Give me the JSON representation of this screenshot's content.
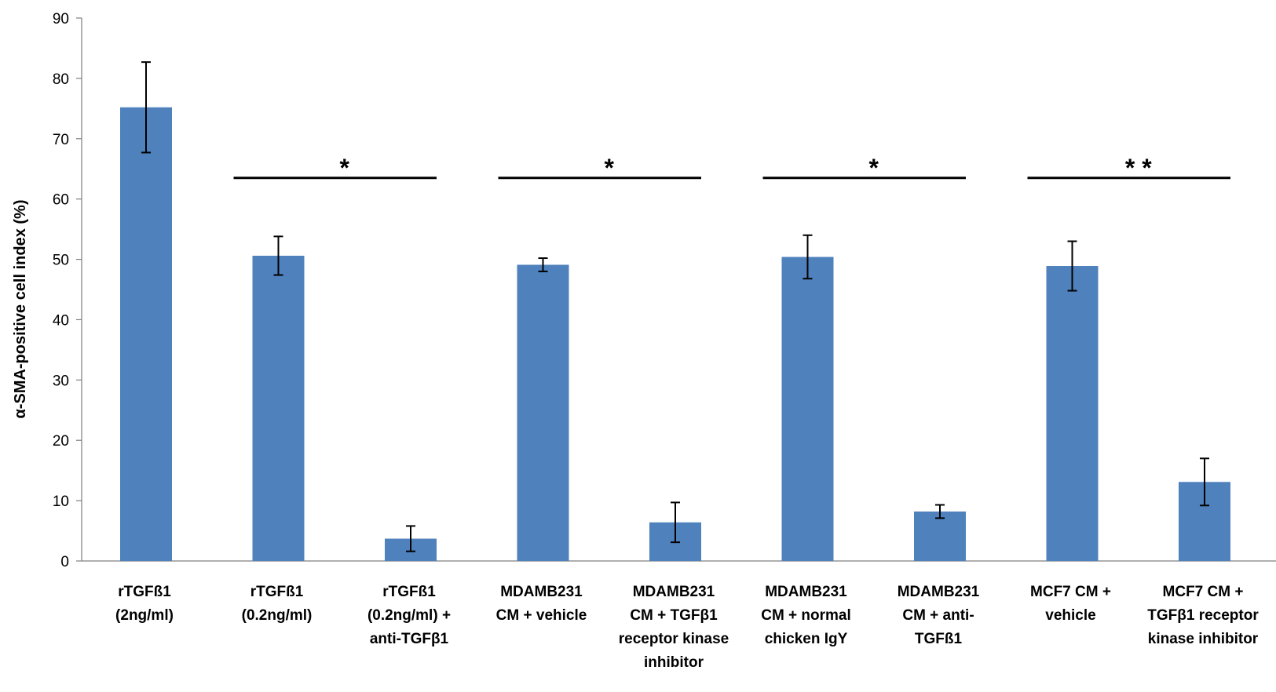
{
  "chart_data": {
    "type": "bar",
    "title": "",
    "xlabel": "",
    "ylabel": "α-SMA-positive cell index (%)",
    "ylim": [
      0,
      90
    ],
    "yticks": [
      0,
      10,
      20,
      30,
      40,
      50,
      60,
      70,
      80,
      90
    ],
    "grid": false,
    "legend": "none",
    "bar_color": "#4f81bd",
    "categories": [
      [
        "rTGFß1",
        "(2ng/ml)"
      ],
      [
        "rTGFß1",
        "(0.2ng/ml)"
      ],
      [
        "rTGFß1",
        "(0.2ng/ml) +",
        "anti-TGFβ1"
      ],
      [
        "MDAMB231",
        "CM + vehicle"
      ],
      [
        "MDAMB231",
        "CM + TGFβ1",
        "receptor kinase",
        "inhibitor"
      ],
      [
        "MDAMB231",
        "CM + normal",
        "chicken IgY"
      ],
      [
        "MDAMB231",
        "CM + anti-",
        "TGFß1"
      ],
      [
        "MCF7 CM +",
        "vehicle"
      ],
      [
        "MCF7 CM +",
        "TGFβ1 receptor",
        "kinase inhibitor"
      ]
    ],
    "values": [
      75.2,
      50.6,
      3.7,
      49.1,
      6.4,
      50.4,
      8.2,
      48.9,
      13.1
    ],
    "error": [
      7.5,
      3.2,
      2.1,
      1.1,
      3.3,
      3.6,
      1.1,
      4.1,
      3.9
    ],
    "annotations": [
      {
        "text": "*",
        "from": 1,
        "to": 2,
        "y": 63.5
      },
      {
        "text": "*",
        "from": 3,
        "to": 4,
        "y": 63.5
      },
      {
        "text": "*",
        "from": 5,
        "to": 6,
        "y": 63.5
      },
      {
        "text": "* *",
        "from": 7,
        "to": 8,
        "y": 63.5
      }
    ]
  }
}
